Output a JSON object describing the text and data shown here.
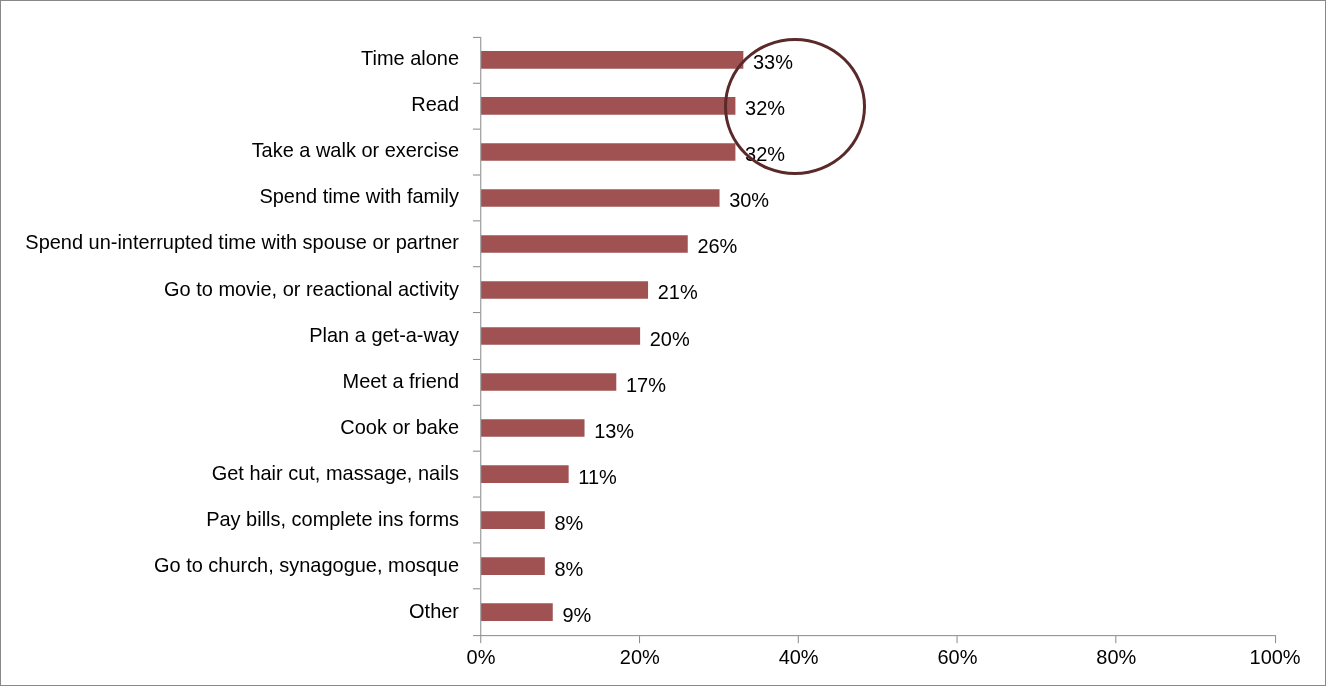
{
  "chart_data": {
    "type": "bar",
    "orientation": "horizontal",
    "categories": [
      "Time alone",
      "Read",
      "Take a walk or exercise",
      "Spend time with family",
      "Spend un-interrupted time with spouse or partner",
      "Go to movie, or reactional activity",
      "Plan a get-a-way",
      "Meet a friend",
      "Cook or bake",
      "Get hair cut, massage, nails",
      "Pay bills, complete ins forms",
      "Go to church, synagogue, mosque",
      "Other"
    ],
    "values": [
      33,
      32,
      32,
      30,
      26,
      21,
      20,
      17,
      13,
      11,
      8,
      8,
      9
    ],
    "value_labels": [
      "33%",
      "32%",
      "32%",
      "30%",
      "26%",
      "21%",
      "20%",
      "17%",
      "13%",
      "11%",
      "8%",
      "8%",
      "9%"
    ],
    "color": "#a05252",
    "xlim": [
      0,
      100
    ],
    "xticks": [
      {
        "value": 0,
        "label": "0%"
      },
      {
        "value": 20,
        "label": "20%"
      },
      {
        "value": 40,
        "label": "40%"
      },
      {
        "value": 60,
        "label": "60%"
      },
      {
        "value": 80,
        "label": "80%"
      },
      {
        "value": 100,
        "label": "100%"
      }
    ],
    "legend": false
  }
}
